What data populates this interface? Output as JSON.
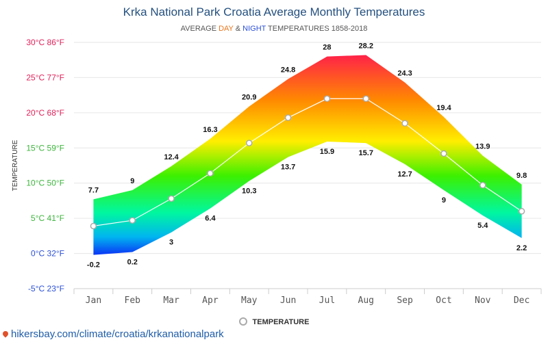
{
  "title": "Krka National Park Croatia Average Monthly Temperatures",
  "subtitle": {
    "prefix": "AVERAGE ",
    "day": "DAY",
    "amp": " & ",
    "night": "NIGHT",
    "suffix": " TEMPERATURES 1858-2018"
  },
  "legend_label": "TEMPERATURE",
  "source_url": "hikersbay.com/climate/croatia/krkanationalpark",
  "colors": {
    "title": "#24507f",
    "day": "#e8751a",
    "night": "#2b4fd6",
    "grid": "#e6e6e6",
    "avg_line": "#ffffff",
    "avg_marker_border": "#aaaaaa"
  },
  "chart_data": {
    "type": "area",
    "ylabel": "TEMPERATURE",
    "ylim": [
      -5,
      30
    ],
    "yticks": [
      {
        "value": 30,
        "label": "30°C 86°F",
        "color": "#e0215a"
      },
      {
        "value": 25,
        "label": "25°C 77°F",
        "color": "#e0215a"
      },
      {
        "value": 20,
        "label": "20°C 68°F",
        "color": "#e0215a"
      },
      {
        "value": 15,
        "label": "15°C 59°F",
        "color": "#3cb43c"
      },
      {
        "value": 10,
        "label": "10°C 50°F",
        "color": "#3cb43c"
      },
      {
        "value": 5,
        "label": "5°C 41°F",
        "color": "#3cb43c"
      },
      {
        "value": 0,
        "label": "0°C 32°F",
        "color": "#2b4fd6"
      },
      {
        "value": -5,
        "label": "-5°C 23°F",
        "color": "#2b4fd6"
      }
    ],
    "categories": [
      "Jan",
      "Feb",
      "Mar",
      "Apr",
      "May",
      "Jun",
      "Jul",
      "Aug",
      "Sep",
      "Oct",
      "Nov",
      "Dec"
    ],
    "series": [
      {
        "values": [
          7.7,
          9,
          12.4,
          16.3,
          20.9,
          24.8,
          28,
          28.2,
          24.3,
          19.4,
          13.9,
          9.8
        ]
      },
      {
        "values": [
          -0.2,
          0.2,
          3,
          6.4,
          10.3,
          13.7,
          15.9,
          15.7,
          12.7,
          9,
          5.4,
          2.2
        ]
      },
      {
        "name": "TEMPERATURE",
        "values": [
          3.9,
          4.7,
          7.8,
          11.4,
          15.7,
          19.3,
          22.0,
          22.0,
          18.5,
          14.2,
          9.7,
          6.0
        ]
      }
    ],
    "grid": true,
    "legend_position": "bottom-center"
  }
}
